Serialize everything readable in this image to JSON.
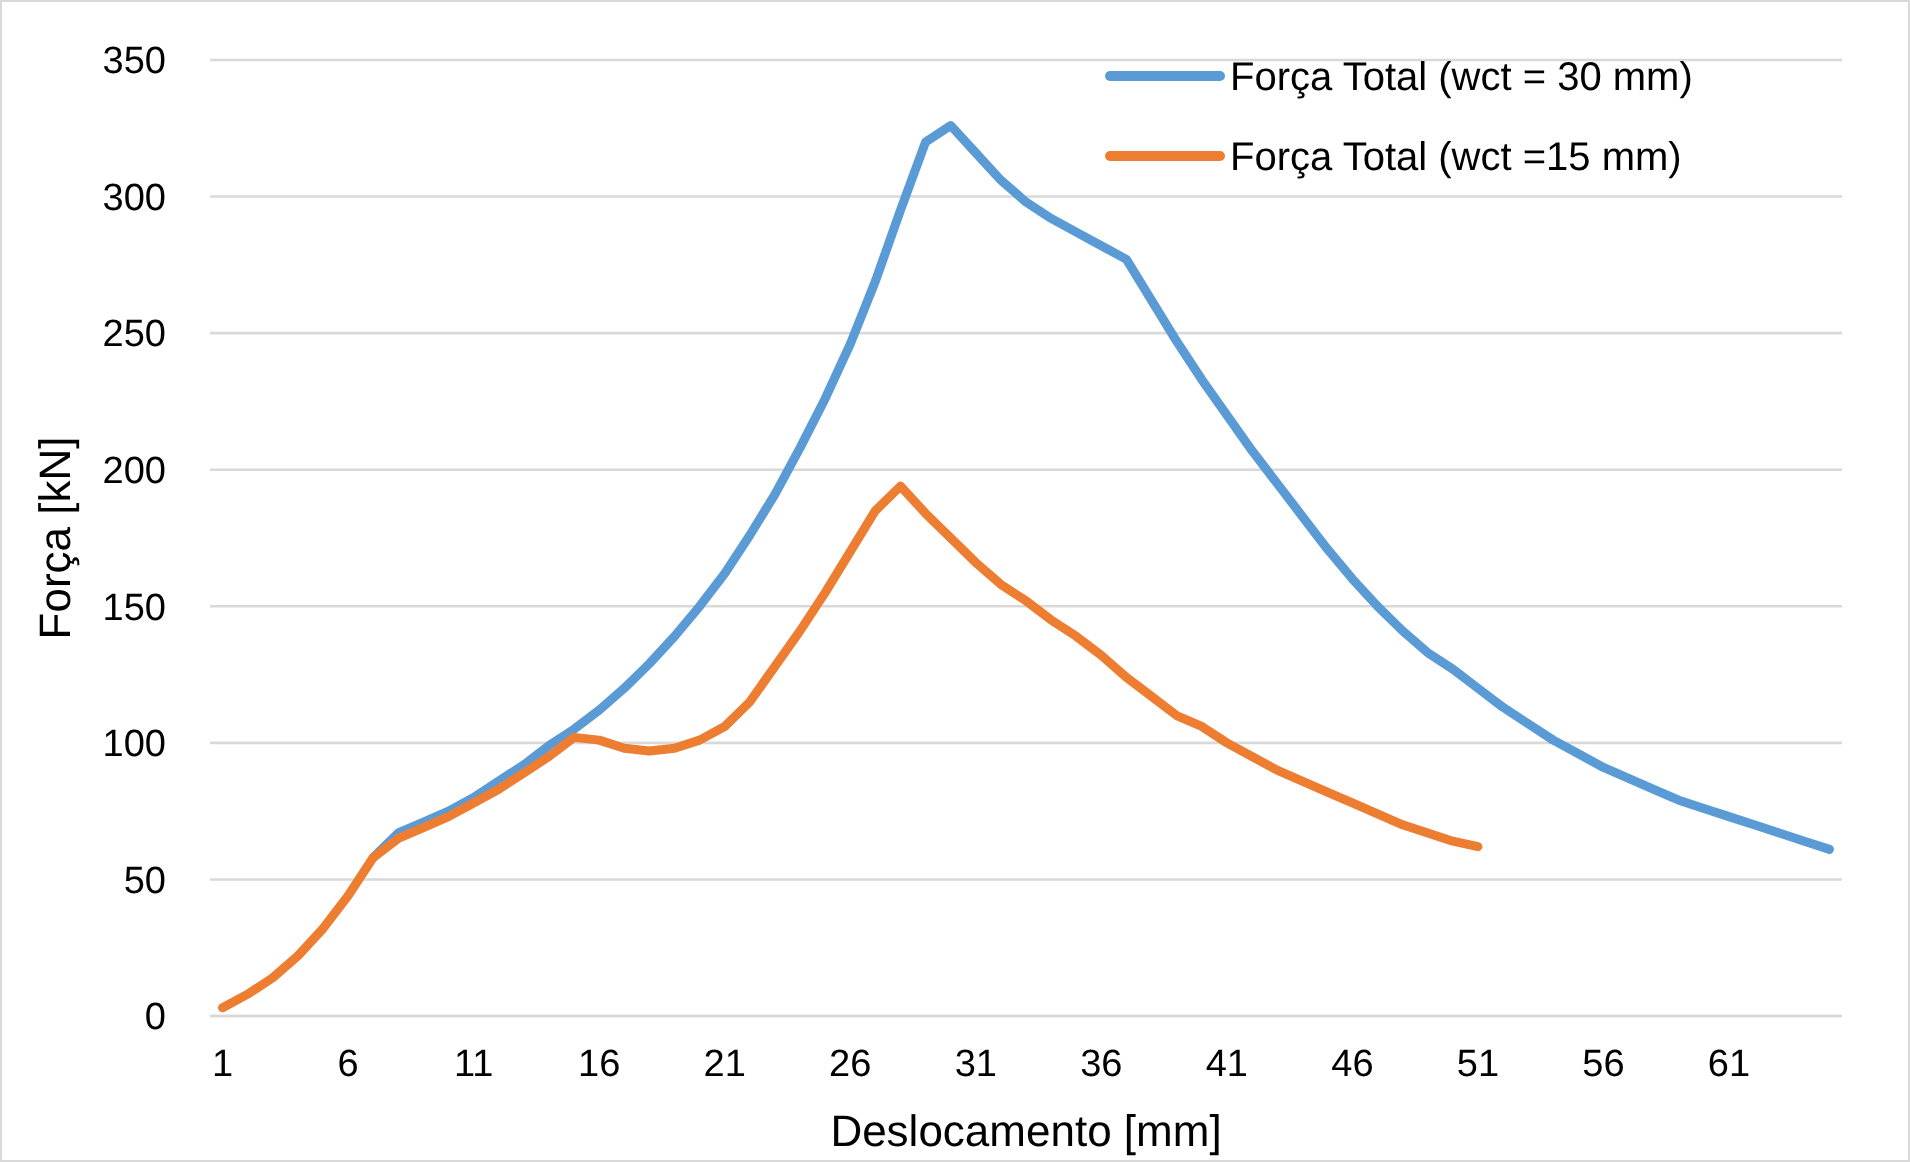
{
  "chart_data": {
    "type": "line",
    "xlabel": "Deslocamento [mm]",
    "ylabel": "Força [kN]",
    "x": [
      1,
      2,
      3,
      4,
      5,
      6,
      7,
      8,
      9,
      10,
      11,
      12,
      13,
      14,
      15,
      16,
      17,
      18,
      19,
      20,
      21,
      22,
      23,
      24,
      25,
      26,
      27,
      28,
      29,
      30,
      31,
      32,
      33,
      34,
      35,
      36,
      37,
      38,
      39,
      40,
      41,
      42,
      43,
      44,
      45,
      46,
      47,
      48,
      49,
      50,
      51,
      52,
      53,
      54,
      55,
      56,
      57,
      58,
      59,
      60,
      61,
      62,
      63,
      64,
      65
    ],
    "xlim": [
      0.5,
      65.5
    ],
    "xticks": [
      1,
      6,
      11,
      16,
      21,
      26,
      31,
      36,
      41,
      46,
      51,
      56,
      61
    ],
    "ylim": [
      0,
      350
    ],
    "yticks": [
      0,
      50,
      100,
      150,
      200,
      250,
      300,
      350
    ],
    "grid": "y",
    "legend": "top right",
    "marker": "none",
    "line_style": "solid",
    "series": [
      {
        "name": "Força Total (wct = 30 mm)",
        "color": "#5b9bd5",
        "values": [
          null,
          null,
          null,
          null,
          null,
          null,
          58,
          67,
          71,
          75,
          80,
          86,
          92,
          99,
          105,
          112,
          120,
          129,
          139,
          150,
          162,
          176,
          191,
          208,
          226,
          246,
          269,
          295,
          320,
          326,
          316,
          306,
          298,
          292,
          287,
          282,
          277,
          262,
          247,
          233,
          220,
          207,
          195,
          183,
          171,
          160,
          150,
          141,
          133,
          127,
          120,
          113,
          107,
          101,
          96,
          91,
          87,
          83,
          79,
          76,
          73,
          70,
          67,
          64,
          61
        ]
      },
      {
        "name": "Força Total (wct =15 mm)",
        "color": "#ed7d31",
        "values": [
          3,
          8,
          14,
          22,
          32,
          44,
          58,
          65,
          69,
          73,
          78,
          83,
          89,
          95,
          102,
          101,
          98,
          97,
          98,
          101,
          106,
          115,
          128,
          141,
          155,
          170,
          185,
          194,
          184,
          175,
          166,
          158,
          152,
          145,
          139,
          132,
          124,
          117,
          110,
          106,
          100,
          95,
          90,
          86,
          82,
          78,
          74,
          70,
          67,
          64,
          62,
          null,
          null,
          null,
          null,
          null,
          null,
          null,
          null,
          null,
          null,
          null,
          null,
          null,
          null
        ]
      }
    ]
  }
}
